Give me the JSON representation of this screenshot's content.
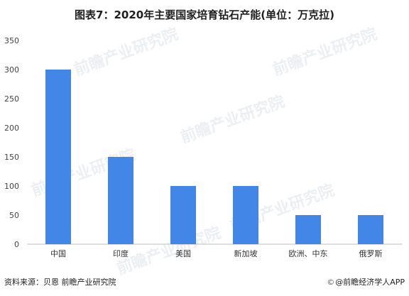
{
  "chart_data": {
    "type": "bar",
    "title": "图表7：2020年主要国家培育钻石产能(单位：万克拉)",
    "categories": [
      "中国",
      "印度",
      "美国",
      "新加坡",
      "欧洲、中东",
      "俄罗斯"
    ],
    "values": [
      300,
      150,
      100,
      100,
      50,
      50
    ],
    "ylim": [
      0,
      350
    ],
    "yticks": [
      0,
      50,
      100,
      150,
      200,
      250,
      300,
      350
    ],
    "bar_color": "#4287e8",
    "grid": false,
    "xlabel": "",
    "ylabel": ""
  },
  "footer": {
    "source": "资料来源：贝恩 前瞻产业研究院",
    "brand_icon": "copyright-icon",
    "brand": "@前瞻经济学人APP"
  },
  "watermark": {
    "text": "前瞻产业研究院"
  }
}
